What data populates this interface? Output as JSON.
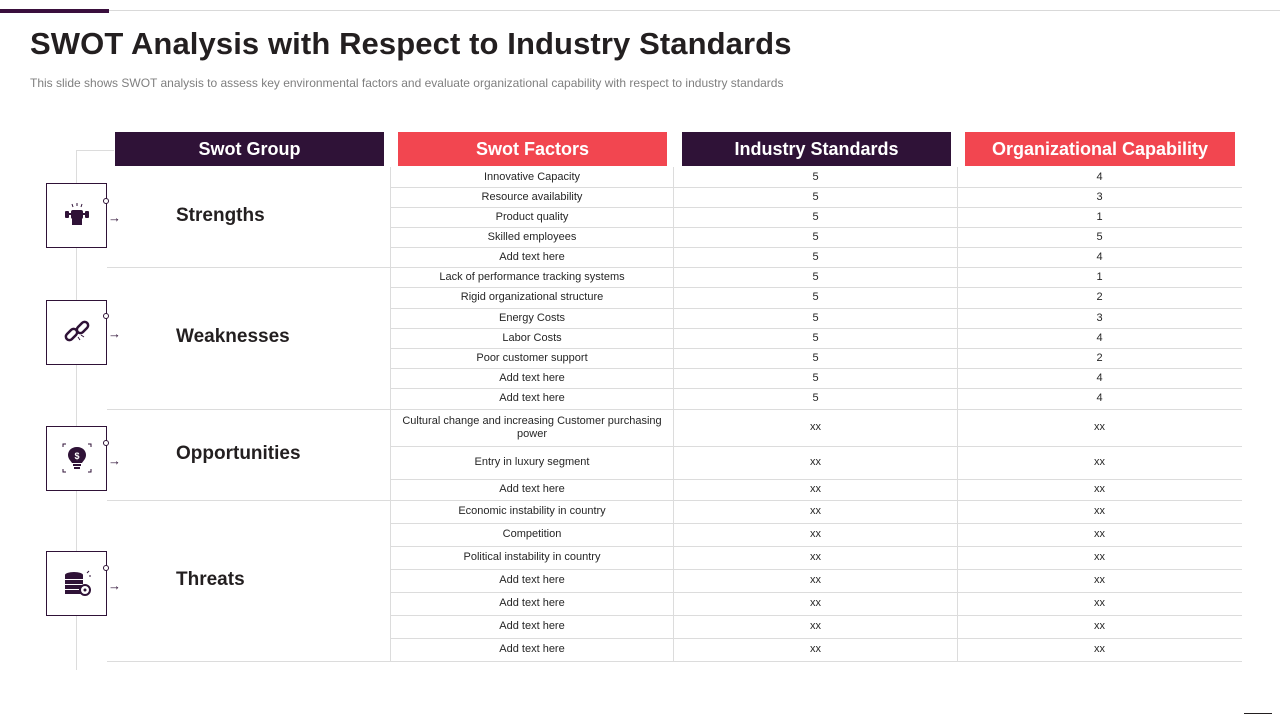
{
  "title": "SWOT Analysis with Respect to Industry Standards",
  "subtitle": "This slide shows SWOT analysis to assess key environmental  factors and evaluate organizational capability with respect to industry standards",
  "colors": {
    "dark": "#2f1237",
    "accent": "#f24650"
  },
  "headers": [
    "Swot Group",
    "Swot Factors",
    "Industry Standards",
    "Organizational Capability"
  ],
  "groups": [
    {
      "name": "Strengths",
      "icon": "strength-fist-icon",
      "rows": [
        {
          "factor": "Innovative Capacity",
          "industry": "5",
          "org": "4"
        },
        {
          "factor": "Resource availability",
          "industry": "5",
          "org": "3"
        },
        {
          "factor": "Product quality",
          "industry": "5",
          "org": "1"
        },
        {
          "factor": "Skilled employees",
          "industry": "5",
          "org": "5"
        },
        {
          "factor": "Add text here",
          "industry": "5",
          "org": "4"
        }
      ]
    },
    {
      "name": "Weaknesses",
      "icon": "broken-chain-icon",
      "rows": [
        {
          "factor": "Lack of performance tracking systems",
          "industry": "5",
          "org": "1"
        },
        {
          "factor": "Rigid organizational structure",
          "industry": "5",
          "org": "2"
        },
        {
          "factor": "Energy Costs",
          "industry": "5",
          "org": "3"
        },
        {
          "factor": "Labor Costs",
          "industry": "5",
          "org": "4"
        },
        {
          "factor": "Poor customer support",
          "industry": "5",
          "org": "2"
        },
        {
          "factor": "Add text here",
          "industry": "5",
          "org": "4"
        },
        {
          "factor": "Add text here",
          "industry": "5",
          "org": "4"
        }
      ]
    },
    {
      "name": "Opportunities",
      "icon": "idea-bulb-dollar-icon",
      "rows": [
        {
          "factor": "Cultural change and increasing Customer purchasing power",
          "industry": "xx",
          "org": "xx"
        },
        {
          "factor": "Entry in luxury segment",
          "industry": "xx",
          "org": "xx"
        },
        {
          "factor": "Add text here",
          "industry": "xx",
          "org": "xx"
        }
      ]
    },
    {
      "name": "Threats",
      "icon": "coin-stack-threat-icon",
      "rows": [
        {
          "factor": "Economic instability in country",
          "industry": "xx",
          "org": "xx"
        },
        {
          "factor": "Competition",
          "industry": "xx",
          "org": "xx"
        },
        {
          "factor": "Political instability in country",
          "industry": "xx",
          "org": "xx"
        },
        {
          "factor": "Add text here",
          "industry": "xx",
          "org": "xx"
        },
        {
          "factor": "Add text here",
          "industry": "xx",
          "org": "xx"
        },
        {
          "factor": "Add text here",
          "industry": "xx",
          "org": "xx"
        },
        {
          "factor": "Add text here",
          "industry": "xx",
          "org": "xx"
        }
      ]
    }
  ]
}
